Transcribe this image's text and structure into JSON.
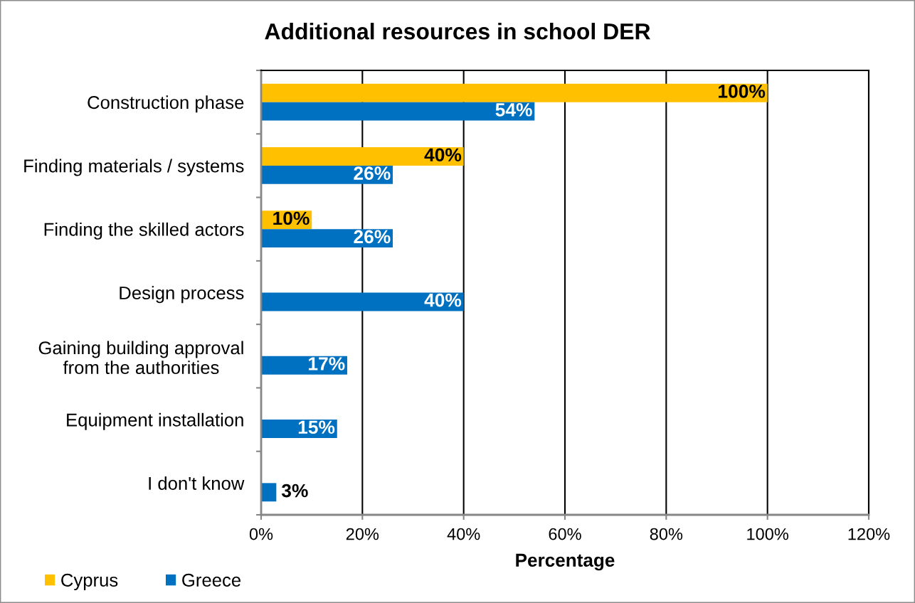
{
  "chart_data": {
    "type": "bar",
    "orientation": "horizontal",
    "title": "Additional resources in school DER",
    "xlabel": "Percentage",
    "categories": [
      "Construction phase",
      "Finding materials / systems",
      "Finding the skilled actors",
      "Design process",
      "Gaining building approval\nfrom the authorities",
      "Equipment installation",
      "I don't know"
    ],
    "series": [
      {
        "name": "Cyprus",
        "color": "#ffc000",
        "values": [
          100,
          40,
          10,
          null,
          null,
          null,
          null
        ],
        "value_labels": [
          "100%",
          "40%",
          "10%",
          null,
          null,
          null,
          null
        ]
      },
      {
        "name": "Greece",
        "color": "#0070c0",
        "values": [
          54,
          26,
          26,
          40,
          17,
          15,
          3
        ],
        "value_labels": [
          "54%",
          "26%",
          "26%",
          "40%",
          "17%",
          "15%",
          "3%"
        ]
      }
    ],
    "xlim": [
      0,
      120
    ],
    "xticks": [
      {
        "value": 0,
        "label": "0%"
      },
      {
        "value": 20,
        "label": "20%"
      },
      {
        "value": 40,
        "label": "40%"
      },
      {
        "value": 60,
        "label": "60%"
      },
      {
        "value": 80,
        "label": "80%"
      },
      {
        "value": 100,
        "label": "100%"
      },
      {
        "value": 120,
        "label": "120%"
      }
    ],
    "grid": "x",
    "legend": "bottom left"
  }
}
